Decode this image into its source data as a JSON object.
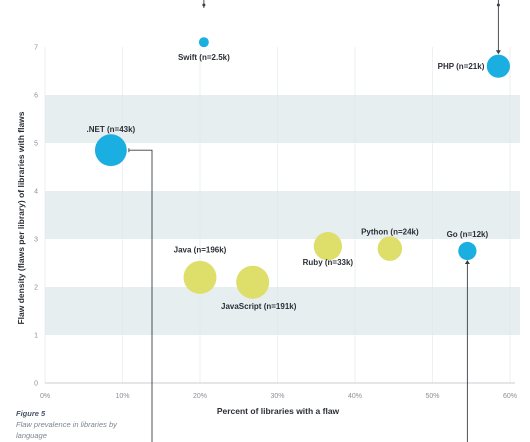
{
  "chart_data": {
    "type": "scatter",
    "xlabel": "Percent of libraries with a flaw",
    "ylabel": "Flaw density (flaws per library) of libraries with flaws",
    "xlim": [
      0,
      60
    ],
    "ylim": [
      0,
      7
    ],
    "x_ticks": [
      "0%",
      "10%",
      "20%",
      "30%",
      "40%",
      "50%",
      "60%"
    ],
    "y_ticks": [
      "0",
      "1",
      "2",
      "3",
      "4",
      "5",
      "6",
      "7"
    ],
    "grid": "alternating horizontal bands",
    "points": [
      {
        "label": "Swift (n=2.5k)",
        "x": 20.5,
        "y": 7.1,
        "n": 2.5,
        "color": "#1aaee1"
      },
      {
        "label": "PHP (n=21k)",
        "x": 58.5,
        "y": 6.6,
        "n": 21,
        "color": "#1aaee1"
      },
      {
        "label": ".NET (n=43k)",
        "x": 8.5,
        "y": 4.85,
        "n": 43,
        "color": "#1aaee1"
      },
      {
        "label": "Go (n=12k)",
        "x": 54.5,
        "y": 2.75,
        "n": 12,
        "color": "#1aaee1"
      },
      {
        "label": "Python (n=24k)",
        "x": 44.5,
        "y": 2.8,
        "n": 24,
        "color": "#dede6a"
      },
      {
        "label": "Ruby (n=33k)",
        "x": 36.5,
        "y": 2.85,
        "n": 33,
        "color": "#dede6a"
      },
      {
        "label": "Java (n=196k)",
        "x": 20.0,
        "y": 2.2,
        "n": 196,
        "color": "#dede6a"
      },
      {
        "label": "JavaScript (n=191k)",
        "x": 26.8,
        "y": 2.1,
        "n": 191,
        "color": "#dede6a"
      }
    ]
  },
  "caption": {
    "figure": "Figure 5",
    "description": "Flaw prevalence in libraries by language"
  }
}
